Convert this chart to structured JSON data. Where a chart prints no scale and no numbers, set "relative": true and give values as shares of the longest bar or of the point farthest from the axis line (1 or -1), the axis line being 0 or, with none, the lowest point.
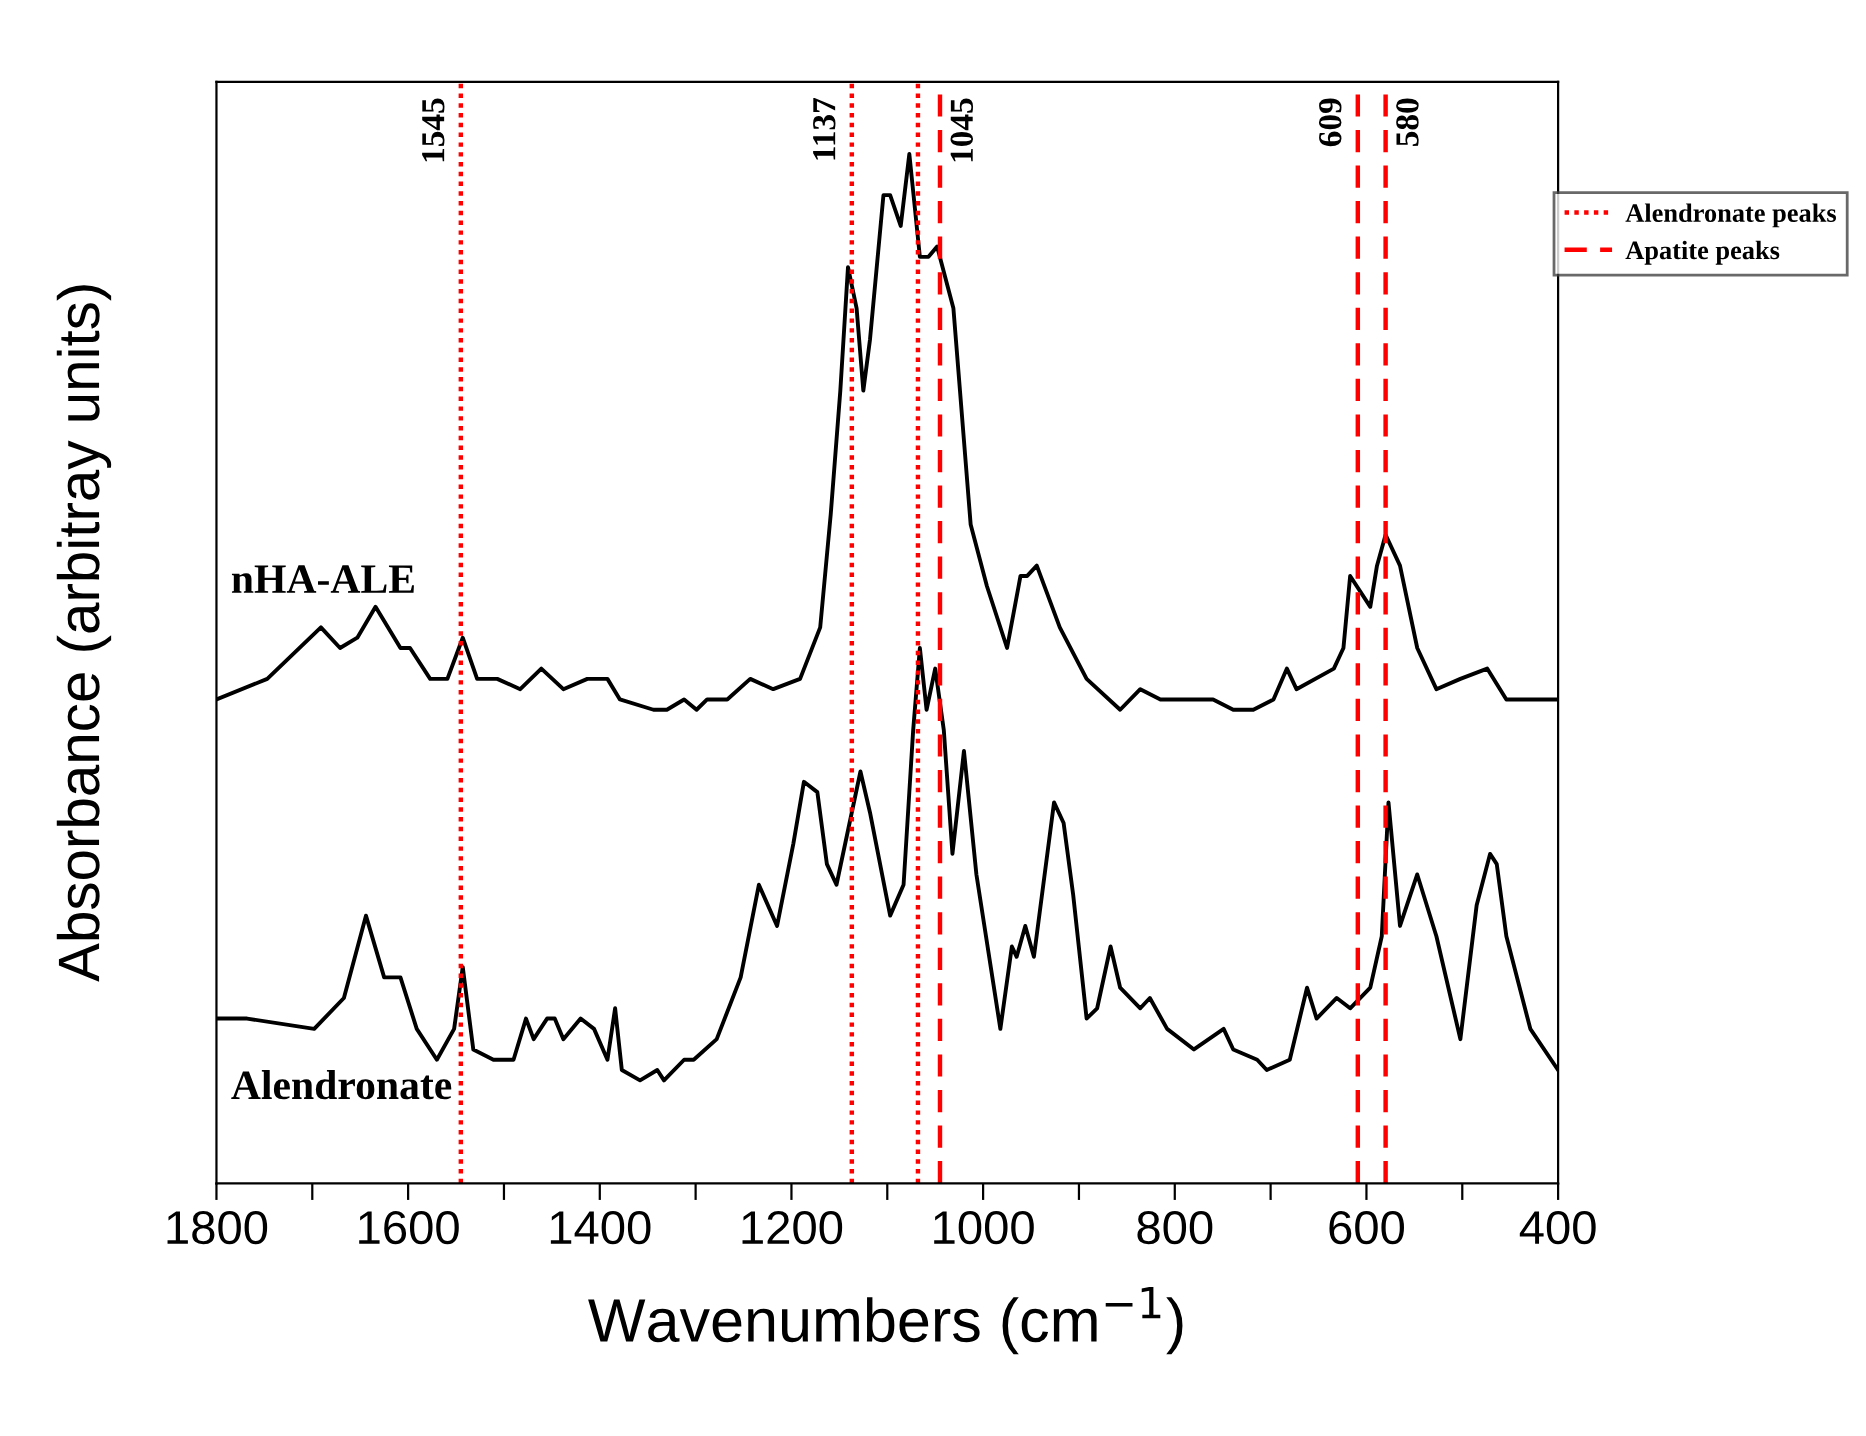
{
  "chart_data": {
    "type": "line",
    "relative": true,
    "xlabel": "Wavenumbers (cm$^{−1}$)",
    "ylabel": "Absorbance (arbitray units)",
    "xlim": [
      1800,
      400
    ],
    "xticks": [
      1800,
      {
        "value": 1700,
        "label": null
      },
      1600,
      {
        "value": 1500,
        "label": null
      },
      1400,
      {
        "value": 1300,
        "label": null
      },
      1200,
      {
        "value": 1100,
        "label": null
      },
      1000,
      {
        "value": 900,
        "label": null
      },
      800,
      {
        "value": 700,
        "label": null
      },
      600,
      {
        "value": 500,
        "label": null
      },
      400
    ],
    "grid": false,
    "legend": "right",
    "line_style": "solid",
    "marker": "none",
    "annotations": [
      "Alendronate peaks",
      "Apatite peaks"
    ],
    "ref_lines": [
      {
        "axis": "x",
        "value": 1545,
        "label": "1545",
        "color": "#ff0000",
        "line_style": "dotted"
      },
      {
        "axis": "x",
        "value": 1137,
        "label": "1137",
        "color": "#ff0000",
        "line_style": "dotted"
      },
      {
        "axis": "x",
        "value": 1068,
        "label": null,
        "color": "#ff0000",
        "line_style": "dotted"
      },
      {
        "axis": "x",
        "value": 1045,
        "label": "1045",
        "color": "#ff0000",
        "line_style": "dashed"
      },
      {
        "axis": "x",
        "value": 609,
        "label": "609",
        "color": "#ff0000",
        "line_style": "dashed"
      },
      {
        "axis": "x",
        "value": 580,
        "label": "580",
        "color": "#ff0000",
        "line_style": "dashed"
      }
    ],
    "series": [
      {
        "name": "nHA-ALE",
        "color": "#000000",
        "x": [
          1800,
          1747,
          1691,
          1671,
          1653,
          1634,
          1608,
          1598,
          1577,
          1559,
          1543,
          1528,
          1507,
          1483,
          1461,
          1438,
          1413,
          1392,
          1379,
          1344,
          1330,
          1312,
          1299,
          1288,
          1267,
          1243,
          1219,
          1191,
          1170,
          1159,
          1149,
          1141,
          1132,
          1125,
          1118,
          1104,
          1097,
          1086,
          1077,
          1066,
          1057,
          1048,
          1031,
          1013,
          996,
          975,
          961,
          954,
          944,
          920,
          892,
          857,
          836,
          815,
          760,
          739,
          718,
          697,
          683,
          673,
          634,
          624,
          617,
          596,
          589,
          580,
          565,
          547,
          527,
          502,
          474,
          454,
          433,
          415,
          400
        ],
        "values": [
          0.47,
          0.49,
          0.54,
          0.52,
          0.53,
          0.56,
          0.52,
          0.52,
          0.49,
          0.49,
          0.53,
          0.49,
          0.49,
          0.48,
          0.5,
          0.48,
          0.49,
          0.49,
          0.47,
          0.46,
          0.46,
          0.47,
          0.46,
          0.47,
          0.47,
          0.49,
          0.48,
          0.49,
          0.54,
          0.65,
          0.77,
          0.89,
          0.85,
          0.77,
          0.82,
          0.96,
          0.96,
          0.93,
          1.0,
          0.9,
          0.9,
          0.91,
          0.85,
          0.64,
          0.58,
          0.52,
          0.59,
          0.59,
          0.6,
          0.54,
          0.49,
          0.46,
          0.48,
          0.47,
          0.47,
          0.46,
          0.46,
          0.47,
          0.5,
          0.48,
          0.5,
          0.52,
          0.59,
          0.56,
          0.6,
          0.63,
          0.6,
          0.52,
          0.48,
          0.49,
          0.5,
          0.47,
          0.47,
          0.47,
          0.47
        ]
      },
      {
        "name": "Alendronate",
        "color": "#000000",
        "x": [
          1800,
          1768,
          1698,
          1667,
          1644,
          1625,
          1608,
          1591,
          1570,
          1552,
          1543,
          1532,
          1511,
          1490,
          1477,
          1469,
          1455,
          1447,
          1438,
          1420,
          1406,
          1392,
          1384,
          1377,
          1358,
          1340,
          1333,
          1312,
          1302,
          1278,
          1253,
          1234,
          1215,
          1198,
          1187,
          1173,
          1163,
          1153,
          1128,
          1118,
          1097,
          1083,
          1073,
          1066,
          1059,
          1050,
          1041,
          1032,
          1020,
          1007,
          982,
          970,
          965,
          956,
          947,
          926,
          916,
          906,
          892,
          881,
          867,
          857,
          836,
          826,
          808,
          780,
          749,
          739,
          714,
          704,
          680,
          662,
          652,
          631,
          617,
          596,
          584,
          577,
          565,
          547,
          527,
          502,
          485,
          471,
          464,
          454,
          429,
          400
        ],
        "values": [
          0.16,
          0.16,
          0.15,
          0.18,
          0.26,
          0.2,
          0.2,
          0.15,
          0.12,
          0.15,
          0.21,
          0.13,
          0.12,
          0.12,
          0.16,
          0.14,
          0.16,
          0.16,
          0.14,
          0.16,
          0.15,
          0.12,
          0.17,
          0.11,
          0.1,
          0.11,
          0.1,
          0.12,
          0.12,
          0.14,
          0.2,
          0.29,
          0.25,
          0.33,
          0.39,
          0.38,
          0.31,
          0.29,
          0.4,
          0.36,
          0.26,
          0.29,
          0.44,
          0.52,
          0.46,
          0.5,
          0.44,
          0.32,
          0.42,
          0.3,
          0.15,
          0.23,
          0.22,
          0.25,
          0.22,
          0.37,
          0.35,
          0.28,
          0.16,
          0.17,
          0.23,
          0.19,
          0.17,
          0.18,
          0.15,
          0.13,
          0.15,
          0.13,
          0.12,
          0.11,
          0.12,
          0.19,
          0.16,
          0.18,
          0.17,
          0.19,
          0.24,
          0.37,
          0.25,
          0.3,
          0.24,
          0.14,
          0.27,
          0.32,
          0.31,
          0.24,
          0.15,
          0.11
        ]
      }
    ]
  }
}
